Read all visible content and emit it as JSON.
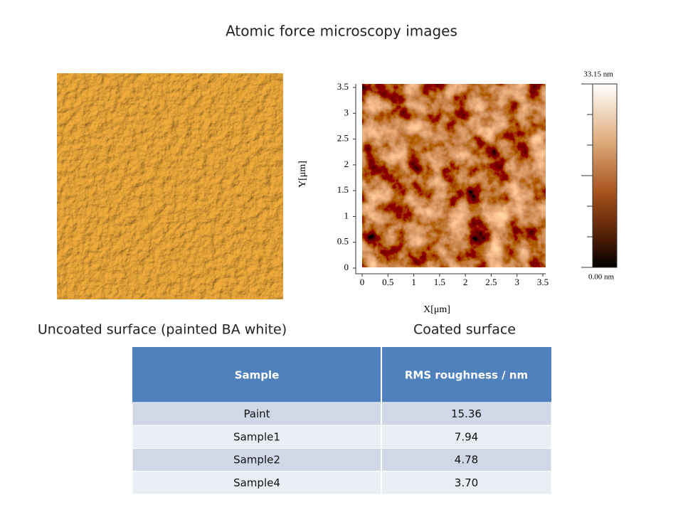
{
  "title": "Atomic force microscopy images",
  "left_image": {
    "caption": "Uncoated surface (painted BA white)"
  },
  "right_image": {
    "caption": "Coated surface",
    "x_label": "X[μm]",
    "y_label": "Y[μm]",
    "ticks": [
      0,
      0.5,
      1,
      1.5,
      2,
      2.5,
      3,
      3.5
    ],
    "colorbar": {
      "max_label": "33.15 nm",
      "min_label": "0.00 nm"
    }
  },
  "table": {
    "header": [
      "Sample",
      "RMS roughness / nm"
    ],
    "rows": [
      [
        "Paint",
        "15.36"
      ],
      [
        "Sample1",
        "7.94"
      ],
      [
        "Sample2",
        "4.78"
      ],
      [
        "Sample4",
        "3.70"
      ]
    ]
  }
}
